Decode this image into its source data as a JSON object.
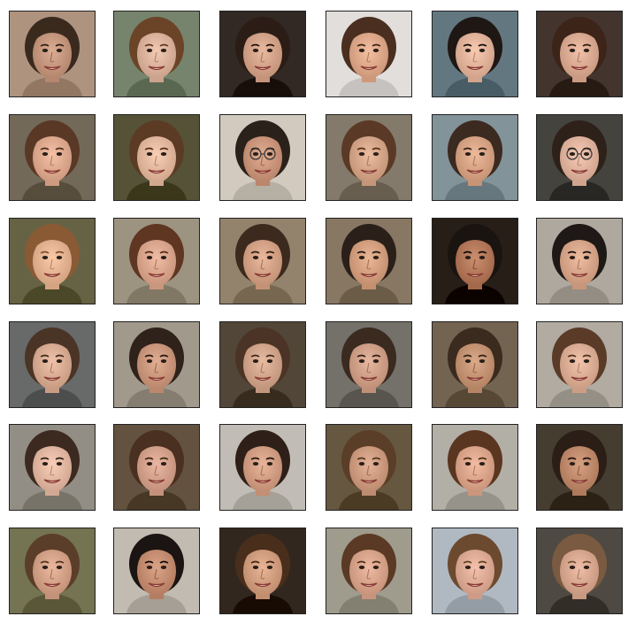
{
  "figure": {
    "rows": 6,
    "cols": 6,
    "tile_style": "square face thumbnails with thin black border on white background"
  },
  "faces": [
    {
      "bg": "#b59a86",
      "skin": "#c99b82",
      "hair": "#3a2a1e",
      "glasses": false
    },
    {
      "bg": "#7d8b74",
      "skin": "#e0b7a0",
      "hair": "#6b4428",
      "glasses": false
    },
    {
      "bg": "#3a302c",
      "skin": "#d8a88e",
      "hair": "#2b1d16",
      "glasses": false
    },
    {
      "bg": "#e9e5e2",
      "skin": "#e2ad8e",
      "hair": "#4a2e1f",
      "glasses": false
    },
    {
      "bg": "#6a7f88",
      "skin": "#e6b8a0",
      "hair": "#1e1714",
      "glasses": false
    },
    {
      "bg": "#4a3d35",
      "skin": "#deae96",
      "hair": "#3d2418",
      "glasses": false
    },
    {
      "bg": "#7a7060",
      "skin": "#e2ae94",
      "hair": "#5a3826",
      "glasses": false
    },
    {
      "bg": "#5d5a3e",
      "skin": "#e6bca2",
      "hair": "#5c3b24",
      "glasses": false
    },
    {
      "bg": "#d9d2c6",
      "skin": "#cf9a80",
      "hair": "#2b211b",
      "glasses": true
    },
    {
      "bg": "#8b8172",
      "skin": "#d9aa8d",
      "hair": "#5a3a26",
      "glasses": false
    },
    {
      "bg": "#899aa0",
      "skin": "#dca88a",
      "hair": "#3b2a20",
      "glasses": false
    },
    {
      "bg": "#4c4a46",
      "skin": "#e4b8a2",
      "hair": "#2d211a",
      "glasses": true
    },
    {
      "bg": "#6e6a4c",
      "skin": "#e8b896",
      "hair": "#8a5a34",
      "glasses": false
    },
    {
      "bg": "#a49a88",
      "skin": "#dfaa92",
      "hair": "#5e3622",
      "glasses": false
    },
    {
      "bg": "#9a8a74",
      "skin": "#d8a68a",
      "hair": "#3d2a1e",
      "glasses": false
    },
    {
      "bg": "#8e7f6a",
      "skin": "#d8a484",
      "hair": "#2a2019",
      "glasses": false
    },
    {
      "bg": "#2e2520",
      "skin": "#b87c5e",
      "hair": "#1a1411",
      "glasses": false
    },
    {
      "bg": "#b6b0a6",
      "skin": "#dcaa8e",
      "hair": "#1e1816",
      "glasses": false
    },
    {
      "bg": "#6f7070",
      "skin": "#ddb098",
      "hair": "#4a3426",
      "glasses": false
    },
    {
      "bg": "#a8a092",
      "skin": "#cf9c82",
      "hair": "#2f221a",
      "glasses": false
    },
    {
      "bg": "#5a4e40",
      "skin": "#d6aa90",
      "hair": "#4b3425",
      "glasses": false
    },
    {
      "bg": "#7a7870",
      "skin": "#d4a48c",
      "hair": "#3a2a20",
      "glasses": false
    },
    {
      "bg": "#7a6a58",
      "skin": "#c89878",
      "hair": "#3b2b1f",
      "glasses": false
    },
    {
      "bg": "#b8b3a8",
      "skin": "#e0b29a",
      "hair": "#5a3b28",
      "glasses": false
    },
    {
      "bg": "#9a968c",
      "skin": "#e6bca6",
      "hair": "#3c2a20",
      "glasses": false
    },
    {
      "bg": "#6a5a48",
      "skin": "#d8a690",
      "hair": "#4a3020",
      "glasses": false
    },
    {
      "bg": "#c8c4bc",
      "skin": "#d6a288",
      "hair": "#2e2018",
      "glasses": false
    },
    {
      "bg": "#6e5e48",
      "skin": "#d2a084",
      "hair": "#5a3e28",
      "glasses": false
    },
    {
      "bg": "#b9b6ae",
      "skin": "#e0aa90",
      "hair": "#5a3620",
      "glasses": false
    },
    {
      "bg": "#4e4438",
      "skin": "#c48e70",
      "hair": "#2a1e16",
      "glasses": false
    },
    {
      "bg": "#7c7a5a",
      "skin": "#d8a68c",
      "hair": "#5a3e2a",
      "glasses": false
    },
    {
      "bg": "#c8c2b8",
      "skin": "#c99276",
      "hair": "#1a1412",
      "glasses": false
    },
    {
      "bg": "#3a2e26",
      "skin": "#d6a284",
      "hair": "#4a2e1c",
      "glasses": false
    },
    {
      "bg": "#a6a294",
      "skin": "#dca890",
      "hair": "#5a3a24",
      "glasses": false
    },
    {
      "bg": "#b7c0c8",
      "skin": "#e2b09a",
      "hair": "#6b4a30",
      "glasses": false
    },
    {
      "bg": "#55504a",
      "skin": "#dcac94",
      "hair": "#7a5a40",
      "glasses": false
    }
  ]
}
